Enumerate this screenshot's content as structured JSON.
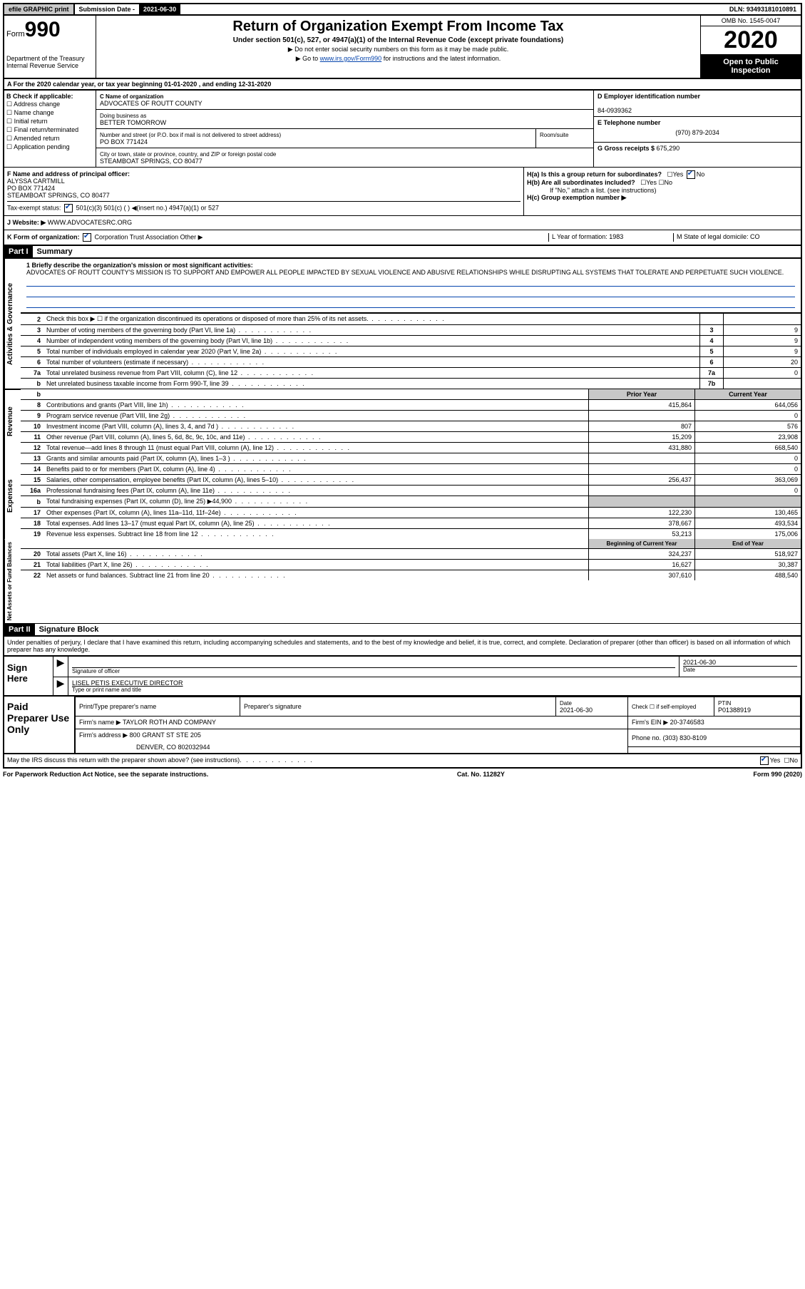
{
  "top": {
    "efile": "efile GRAPHIC print",
    "sub_label": "Submission Date - ",
    "sub_date": "2021-06-30",
    "dln": "DLN: 93493181010891"
  },
  "header": {
    "form": "Form",
    "num": "990",
    "dept": "Department of the Treasury",
    "irs": "Internal Revenue Service",
    "title": "Return of Organization Exempt From Income Tax",
    "sub": "Under section 501(c), 527, or 4947(a)(1) of the Internal Revenue Code (except private foundations)",
    "note1": "▶ Do not enter social security numbers on this form as it may be made public.",
    "note2_pre": "▶ Go to ",
    "note2_link": "www.irs.gov/Form990",
    "note2_post": " for instructions and the latest information.",
    "omb": "OMB No. 1545-0047",
    "year": "2020",
    "open": "Open to Public Inspection"
  },
  "line_a": "A For the 2020 calendar year, or tax year beginning 01-01-2020    , and ending 12-31-2020",
  "b": {
    "label": "B Check if applicable:",
    "opts": [
      "Address change",
      "Name change",
      "Initial return",
      "Final return/terminated",
      "Amended return",
      "Application pending"
    ]
  },
  "c": {
    "name_label": "C Name of organization",
    "name": "ADVOCATES OF ROUTT COUNTY",
    "dba_label": "Doing business as",
    "dba": "BETTER TOMORROW",
    "addr_label": "Number and street (or P.O. box if mail is not delivered to street address)",
    "room_label": "Room/suite",
    "addr": "PO BOX 771424",
    "city_label": "City or town, state or province, country, and ZIP or foreign postal code",
    "city": "STEAMBOAT SPRINGS, CO  80477"
  },
  "d": {
    "ein_label": "D Employer identification number",
    "ein": "84-0939362",
    "tel_label": "E Telephone number",
    "tel": "(970) 879-2034",
    "gross_label": "G Gross receipts $ ",
    "gross": "675,290"
  },
  "f": {
    "label": "F Name and address of principal officer:",
    "name": "ALYSSA CARTMILL",
    "addr1": "PO BOX 771424",
    "addr2": "STEAMBOAT SPRINGS, CO  80477",
    "tax_label": "Tax-exempt status:",
    "tax_opts": "501(c)(3)     501(c) (  ) ◀(insert no.)     4947(a)(1) or     527"
  },
  "h": {
    "a": "H(a)  Is this a group return for subordinates?",
    "b": "H(b)  Are all subordinates included?",
    "b_note": "If \"No,\" attach a list. (see instructions)",
    "c": "H(c)  Group exemption number ▶"
  },
  "j": {
    "label": "J  Website: ▶",
    "url": "WWW.ADVOCATESRC.ORG"
  },
  "k": {
    "label": "K Form of organization:",
    "opts": "Corporation     Trust     Association     Other ▶",
    "l": "L Year of formation: 1983",
    "m": "M State of legal domicile: CO"
  },
  "part1": {
    "header": "Part I",
    "title": "Summary",
    "line1_label": "1  Briefly describe the organization's mission or most significant activities:",
    "mission": "ADVOCATES OF ROUTT COUNTY'S MISSION IS TO SUPPORT AND EMPOWER ALL PEOPLE IMPACTED BY SEXUAL VIOLENCE AND ABUSIVE RELATIONSHIPS WHILE DISRUPTING ALL SYSTEMS THAT TOLERATE AND PERPETUATE SUCH VIOLENCE.",
    "side1": "Activities & Governance",
    "rows_ag": [
      {
        "n": "2",
        "t": "Check this box ▶ ☐  if the organization discontinued its operations or disposed of more than 25% of its net assets.",
        "b": "",
        "v": ""
      },
      {
        "n": "3",
        "t": "Number of voting members of the governing body (Part VI, line 1a)",
        "b": "3",
        "v": "9"
      },
      {
        "n": "4",
        "t": "Number of independent voting members of the governing body (Part VI, line 1b)",
        "b": "4",
        "v": "9"
      },
      {
        "n": "5",
        "t": "Total number of individuals employed in calendar year 2020 (Part V, line 2a)",
        "b": "5",
        "v": "9"
      },
      {
        "n": "6",
        "t": "Total number of volunteers (estimate if necessary)",
        "b": "6",
        "v": "20"
      },
      {
        "n": "7a",
        "t": "Total unrelated business revenue from Part VIII, column (C), line 12",
        "b": "7a",
        "v": "0"
      },
      {
        "n": "b",
        "t": "Net unrelated business taxable income from Form 990-T, line 39",
        "b": "7b",
        "v": ""
      }
    ],
    "py_label": "Prior Year",
    "cy_label": "Current Year",
    "side2": "Revenue",
    "rows_rev": [
      {
        "n": "8",
        "t": "Contributions and grants (Part VIII, line 1h)",
        "py": "415,864",
        "cy": "644,056"
      },
      {
        "n": "9",
        "t": "Program service revenue (Part VIII, line 2g)",
        "py": "",
        "cy": "0"
      },
      {
        "n": "10",
        "t": "Investment income (Part VIII, column (A), lines 3, 4, and 7d )",
        "py": "807",
        "cy": "576"
      },
      {
        "n": "11",
        "t": "Other revenue (Part VIII, column (A), lines 5, 6d, 8c, 9c, 10c, and 11e)",
        "py": "15,209",
        "cy": "23,908"
      },
      {
        "n": "12",
        "t": "Total revenue—add lines 8 through 11 (must equal Part VIII, column (A), line 12)",
        "py": "431,880",
        "cy": "668,540"
      }
    ],
    "side3": "Expenses",
    "rows_exp": [
      {
        "n": "13",
        "t": "Grants and similar amounts paid (Part IX, column (A), lines 1–3 )",
        "py": "",
        "cy": "0"
      },
      {
        "n": "14",
        "t": "Benefits paid to or for members (Part IX, column (A), line 4)",
        "py": "",
        "cy": "0"
      },
      {
        "n": "15",
        "t": "Salaries, other compensation, employee benefits (Part IX, column (A), lines 5–10)",
        "py": "256,437",
        "cy": "363,069"
      },
      {
        "n": "16a",
        "t": "Professional fundraising fees (Part IX, column (A), line 11e)",
        "py": "",
        "cy": "0"
      },
      {
        "n": "b",
        "t": "Total fundraising expenses (Part IX, column (D), line 25) ▶44,900",
        "py": "shade",
        "cy": "shade"
      },
      {
        "n": "17",
        "t": "Other expenses (Part IX, column (A), lines 11a–11d, 11f–24e)",
        "py": "122,230",
        "cy": "130,465"
      },
      {
        "n": "18",
        "t": "Total expenses. Add lines 13–17 (must equal Part IX, column (A), line 25)",
        "py": "378,667",
        "cy": "493,534"
      },
      {
        "n": "19",
        "t": "Revenue less expenses. Subtract line 18 from line 12",
        "py": "53,213",
        "cy": "175,006"
      }
    ],
    "boy_label": "Beginning of Current Year",
    "eoy_label": "End of Year",
    "side4": "Net Assets or Fund Balances",
    "rows_net": [
      {
        "n": "20",
        "t": "Total assets (Part X, line 16)",
        "py": "324,237",
        "cy": "518,927"
      },
      {
        "n": "21",
        "t": "Total liabilities (Part X, line 26)",
        "py": "16,627",
        "cy": "30,387"
      },
      {
        "n": "22",
        "t": "Net assets or fund balances. Subtract line 21 from line 20",
        "py": "307,610",
        "cy": "488,540"
      }
    ]
  },
  "part2": {
    "header": "Part II",
    "title": "Signature Block",
    "decl": "Under penalties of perjury, I declare that I have examined this return, including accompanying schedules and statements, and to the best of my knowledge and belief, it is true, correct, and complete. Declaration of preparer (other than officer) is based on all information of which preparer has any knowledge.",
    "sign_here": "Sign Here",
    "sig_officer": "Signature of officer",
    "sig_date_label": "Date",
    "sig_date": "2021-06-30",
    "sig_name": "LISEL PETIS  EXECUTIVE DIRECTOR",
    "sig_name_label": "Type or print name and title",
    "paid": "Paid Preparer Use Only",
    "prep_name_label": "Print/Type preparer's name",
    "prep_sig_label": "Preparer's signature",
    "prep_date_label": "Date",
    "prep_date": "2021-06-30",
    "self_emp": "Check ☐ if self-employed",
    "ptin_label": "PTIN",
    "ptin": "P01388919",
    "firm_name_label": "Firm's name    ▶",
    "firm_name": "TAYLOR ROTH AND COMPANY",
    "firm_ein_label": "Firm's EIN ▶",
    "firm_ein": "20-3746583",
    "firm_addr_label": "Firm's address ▶",
    "firm_addr1": "800 GRANT ST STE 205",
    "firm_addr2": "DENVER, CO  802032944",
    "phone_label": "Phone no.",
    "phone": "(303) 830-8109",
    "discuss": "May the IRS discuss this return with the preparer shown above? (see instructions)",
    "yes": "Yes",
    "no": "No"
  },
  "footer": {
    "pra": "For Paperwork Reduction Act Notice, see the separate instructions.",
    "cat": "Cat. No. 11282Y",
    "form": "Form 990 (2020)"
  }
}
